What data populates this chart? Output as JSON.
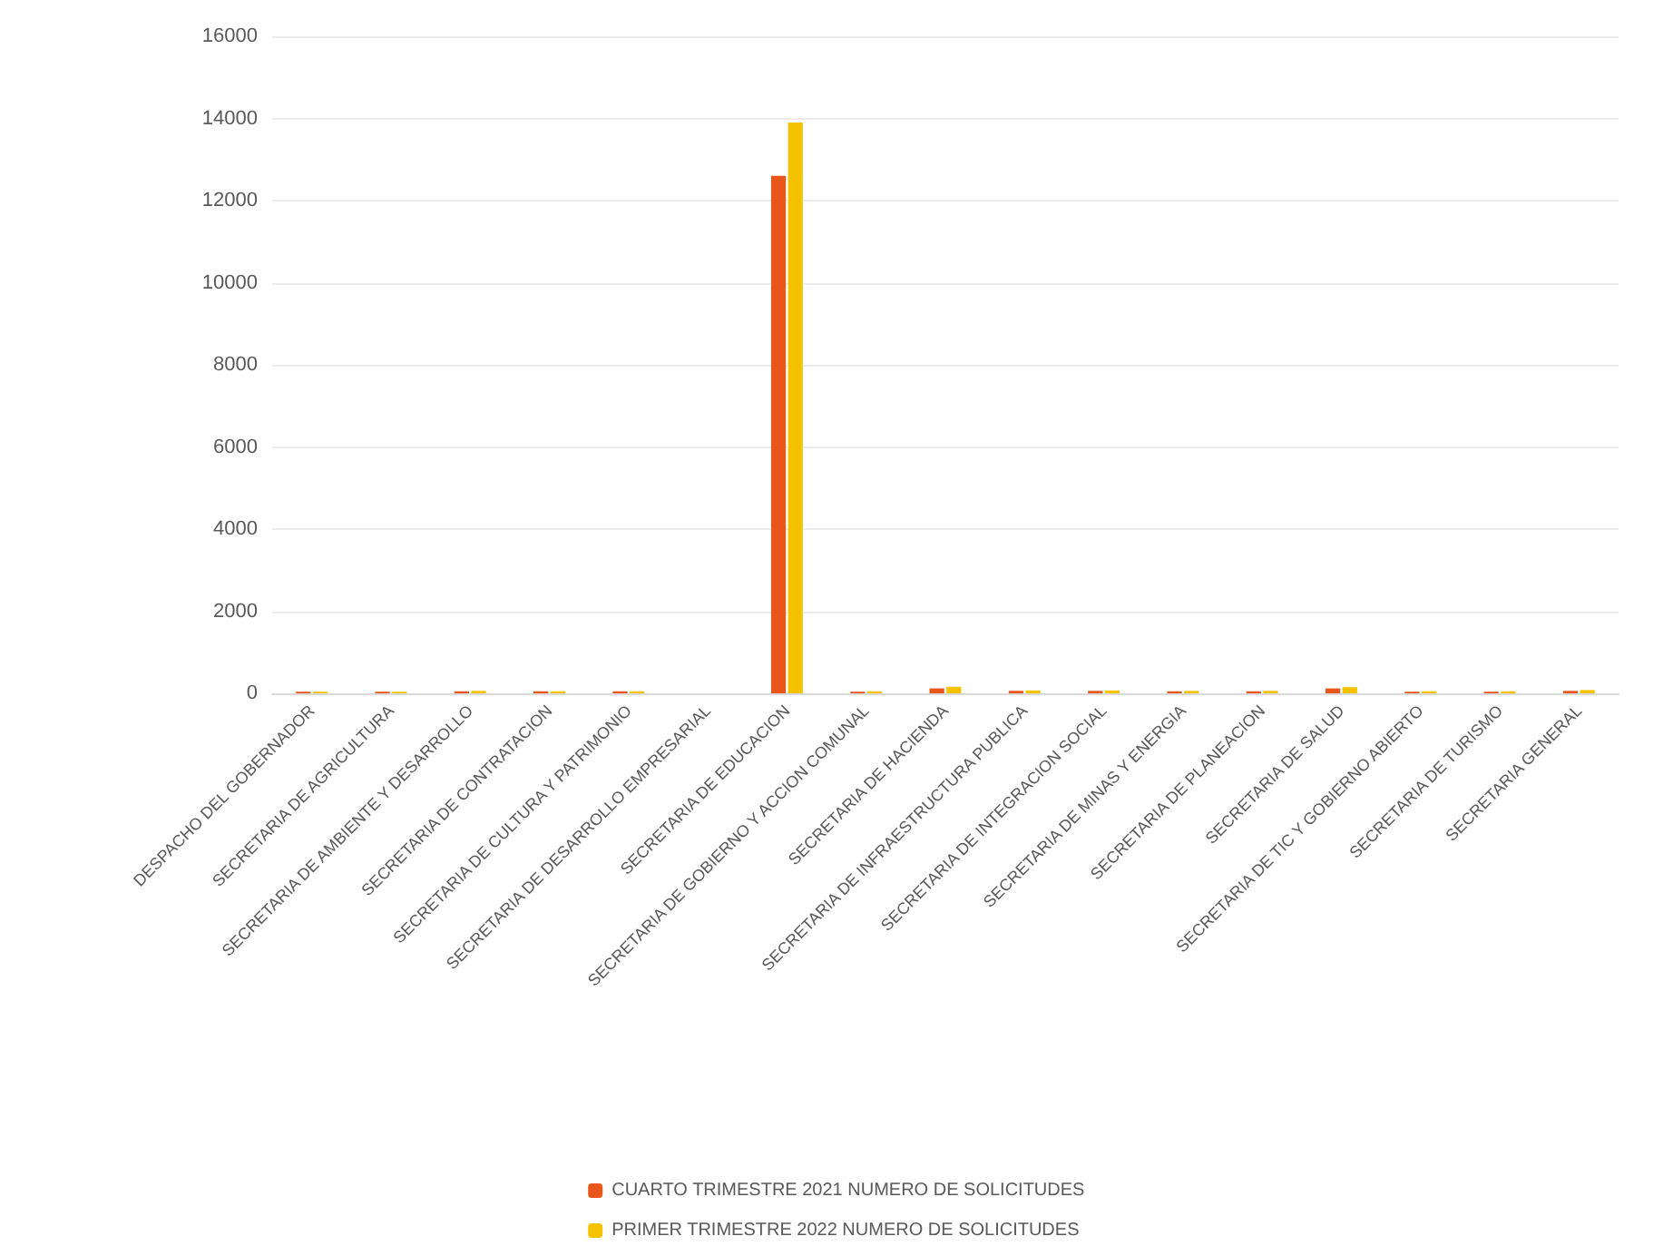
{
  "chart_data": {
    "type": "bar",
    "categories": [
      "DESPACHO DEL GOBERNADOR",
      "SECRETARIA DE AGRICULTURA",
      "SECRETARIA DE AMBIENTE Y DESARROLLO",
      "SECRETARIA DE CONTRATACION",
      "SECRETARIA DE CULTURA Y PATRIMONIO",
      "SECRETARIA DE DESARROLLO EMPRESARIAL",
      "SECRETARIA DE EDUCACION",
      "SECRETARIA DE GOBIERNO Y ACCION COMUNAL",
      "SECRETARIA DE HACIENDA",
      "SECRETARIA DE INFRAESTRUCTURA PUBLICA",
      "SECRETARIA DE INTEGRACION SOCIAL",
      "SECRETARIA DE MINAS Y ENERGIA",
      "SECRETARIA DE PLANEACION",
      "SECRETARIA DE SALUD",
      "SECRETARIA DE TIC Y GOBIERNO ABIERTO",
      "SECRETARIA DE TURISMO",
      "SECRETARIA GENERAL"
    ],
    "series": [
      {
        "name": "CUARTO TRIMESTRE 2021 NUMERO DE SOLICITUDES",
        "color": "#e8561c",
        "values": [
          40,
          40,
          50,
          50,
          50,
          0,
          12600,
          40,
          120,
          60,
          60,
          50,
          50,
          120,
          40,
          40,
          60
        ]
      },
      {
        "name": "PRIMER TRIMESTRE 2022 NUMERO DE SOLICITUDES",
        "color": "#f5c200",
        "values": [
          40,
          40,
          60,
          50,
          50,
          0,
          13900,
          50,
          160,
          70,
          70,
          60,
          60,
          150,
          50,
          50,
          80
        ]
      }
    ],
    "ylim": [
      0,
      16000
    ],
    "yticks": [
      0,
      2000,
      4000,
      6000,
      8000,
      10000,
      12000,
      14000,
      16000
    ],
    "grid": "y",
    "legend": "bottom"
  }
}
